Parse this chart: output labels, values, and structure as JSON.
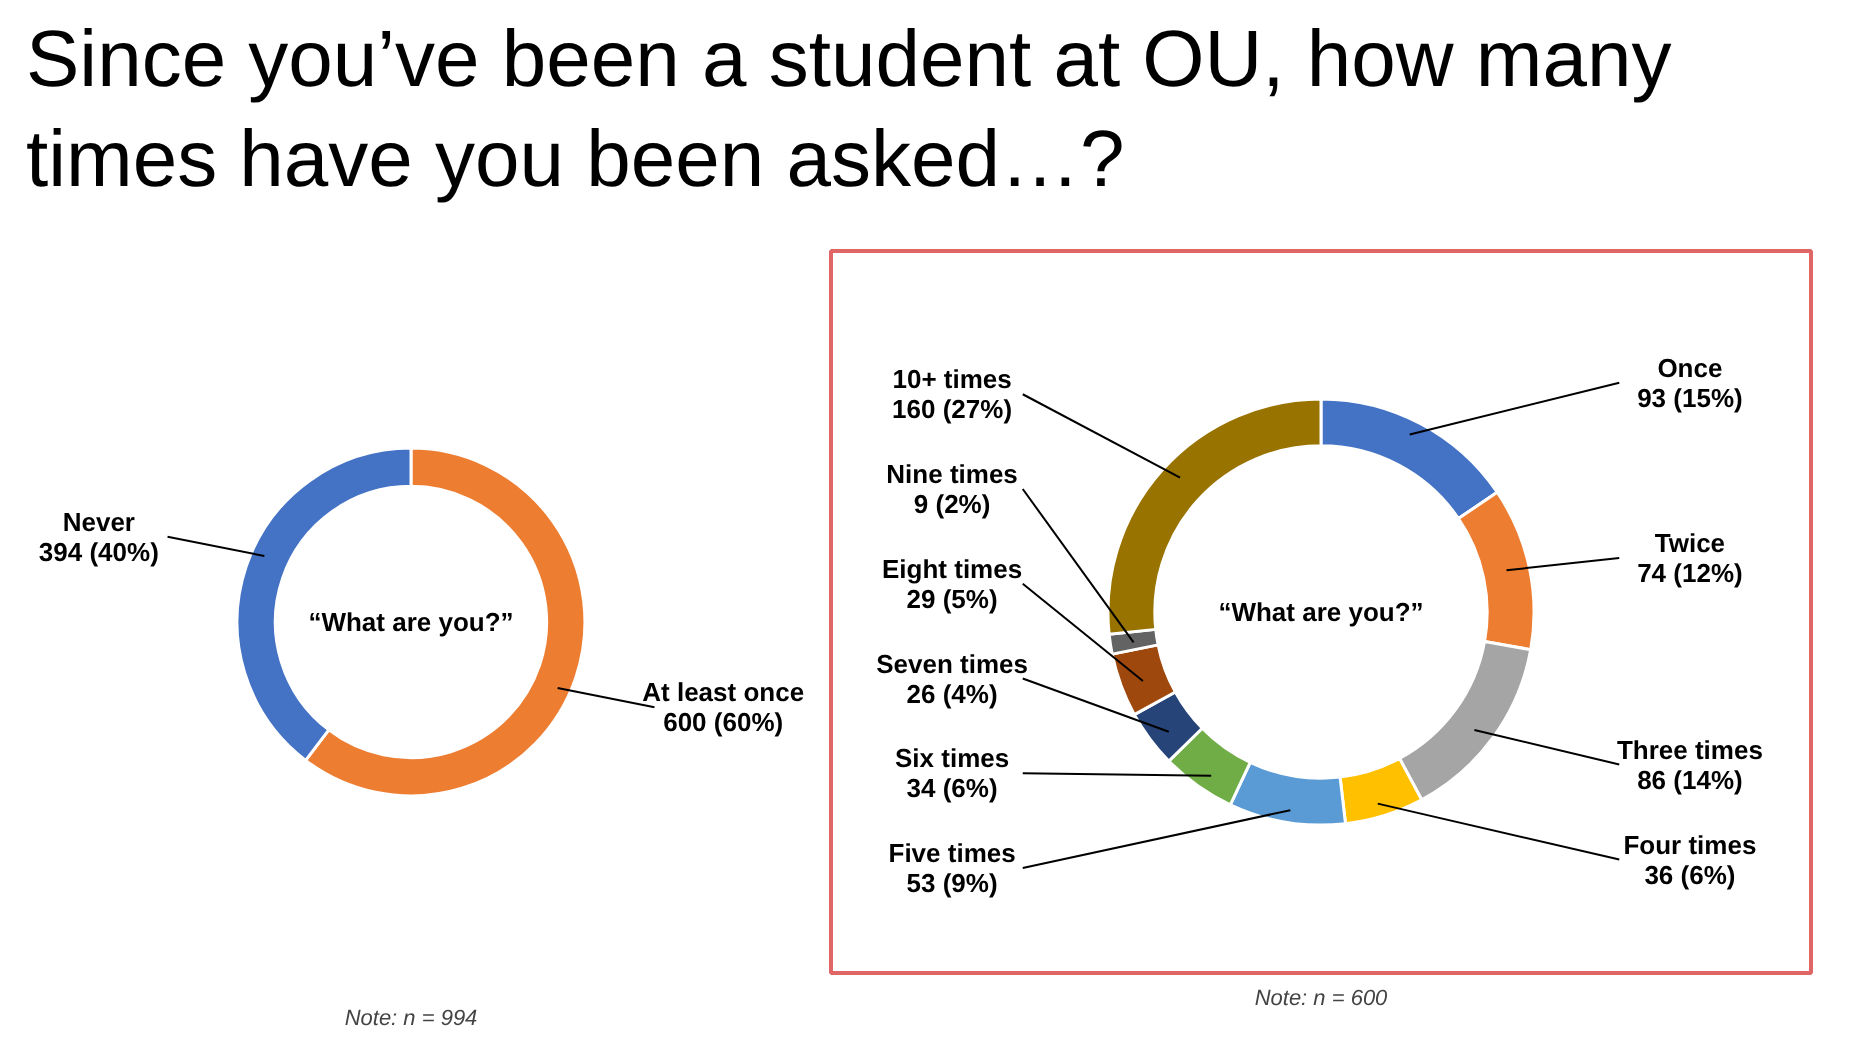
{
  "chart_data": [
    {
      "type": "donut",
      "title": "Since you’ve been a student at OU, how many times have you been asked…?",
      "categories": [
        "At least once",
        "Never"
      ],
      "values": [
        600,
        394
      ],
      "colors": [
        "#ed7d31",
        "#4472c4"
      ],
      "value_labels": [
        "600 (60%)",
        "394 (40%)"
      ],
      "annotations": [
        "“What are you?”",
        "Note: n = 994"
      ]
    },
    {
      "type": "donut",
      "categories": [
        "Once",
        "Twice",
        "Three times",
        "Four times",
        "Five times",
        "Six times",
        "Seven times",
        "Eight times",
        "Nine times",
        "10+ times"
      ],
      "values": [
        93,
        74,
        86,
        36,
        53,
        34,
        26,
        29,
        9,
        160
      ],
      "colors": [
        "#4472c4",
        "#ed7d31",
        "#a5a5a5",
        "#ffc000",
        "#5b9bd5",
        "#70ad47",
        "#264478",
        "#9e480e",
        "#636363",
        "#997300"
      ],
      "value_labels": [
        "93 (15%)",
        "74 (12%)",
        "86 (14%)",
        "36 (6%)",
        "53 (9%)",
        "34 (6%)",
        "26 (4%)",
        "29 (5%)",
        "9 (2%)",
        "160 (27%)"
      ],
      "annotations": [
        "“What are you?”",
        "Note: n = 600"
      ]
    }
  ]
}
